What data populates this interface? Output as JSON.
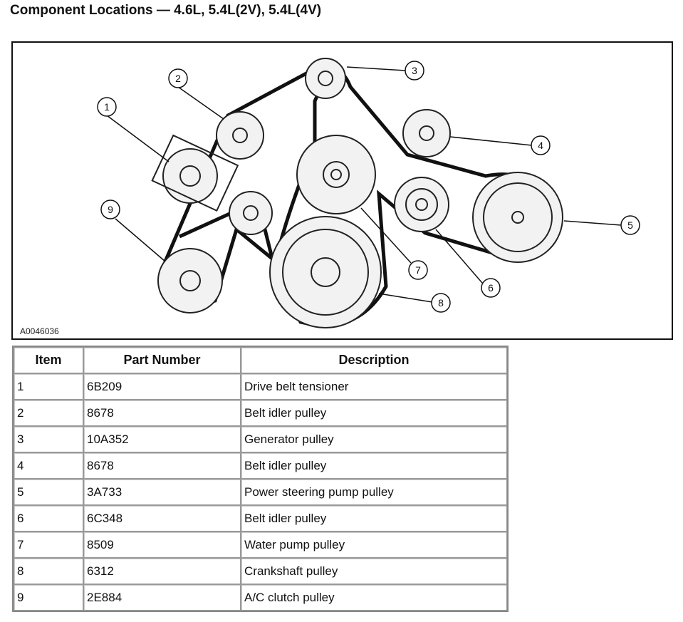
{
  "title": "Component Locations — 4.6L, 5.4L(2V), 5.4L(4V)",
  "diagram": {
    "figure_id": "A0046036",
    "callouts": [
      "1",
      "2",
      "3",
      "4",
      "5",
      "6",
      "7",
      "8",
      "9"
    ]
  },
  "table": {
    "headers": [
      "Item",
      "Part Number",
      "Description"
    ],
    "rows": [
      [
        "1",
        "6B209",
        "Drive belt tensioner"
      ],
      [
        "2",
        "8678",
        "Belt idler pulley"
      ],
      [
        "3",
        "10A352",
        "Generator pulley"
      ],
      [
        "4",
        "8678",
        "Belt idler pulley"
      ],
      [
        "5",
        "3A733",
        "Power steering pump pulley"
      ],
      [
        "6",
        "6C348",
        "Belt idler pulley"
      ],
      [
        "7",
        "8509",
        "Water pump pulley"
      ],
      [
        "8",
        "6312",
        "Crankshaft pulley"
      ],
      [
        "9",
        "2E884",
        "A/C clutch pulley"
      ]
    ]
  }
}
